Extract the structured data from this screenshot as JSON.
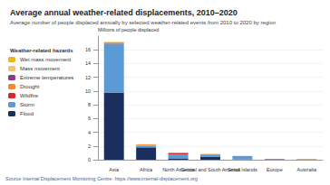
{
  "chart_data": {
    "type": "bar",
    "title": "Average annual weather-related displacements, 2010–2020",
    "subtitle": "Average number of people displaced annually by selected weather-related events from 2010 to 2020 by region",
    "y_label": "Millions of people displaced",
    "legend_title": "Weather-related hazards",
    "source": "Source Internal Displacement Monitoring Centre: https://www.internal-displacement.org",
    "categories": [
      "Asia",
      "Africa",
      "North America",
      "Central and South America",
      "Small Islands",
      "Europe",
      "Australia"
    ],
    "series": [
      {
        "name": "Flood",
        "color": "#1b2f5e",
        "values": [
          9.8,
          1.8,
          0.2,
          0.4,
          0.05,
          0.05,
          0.03
        ]
      },
      {
        "name": "Storm",
        "color": "#5b9bd5",
        "values": [
          7.1,
          0.2,
          0.55,
          0.35,
          0.5,
          0.05,
          0.03
        ]
      },
      {
        "name": "Wildfire",
        "color": "#d62b2b",
        "values": [
          0.02,
          0.02,
          0.2,
          0.02,
          0.0,
          0.03,
          0.02
        ]
      },
      {
        "name": "Drought",
        "color": "#f28c28",
        "values": [
          0.1,
          0.2,
          0.0,
          0.05,
          0.0,
          0.0,
          0.0
        ]
      },
      {
        "name": "Extreme temperatures",
        "color": "#8e3b86",
        "values": [
          0.05,
          0.0,
          0.05,
          0.0,
          0.0,
          0.0,
          0.0
        ]
      },
      {
        "name": "Mass movement",
        "color": "#f6c07a",
        "values": [
          0.05,
          0.02,
          0.0,
          0.02,
          0.0,
          0.0,
          0.0
        ]
      },
      {
        "name": "Wet mass movement",
        "color": "#f0b323",
        "values": [
          0.05,
          0.02,
          0.0,
          0.02,
          0.0,
          0.0,
          0.03
        ]
      }
    ],
    "stacked": true,
    "legend": "left",
    "ylim": [
      0,
      18
    ],
    "yticks": [
      0,
      2,
      4,
      6,
      8,
      10,
      12,
      14,
      16
    ],
    "grid": true
  }
}
